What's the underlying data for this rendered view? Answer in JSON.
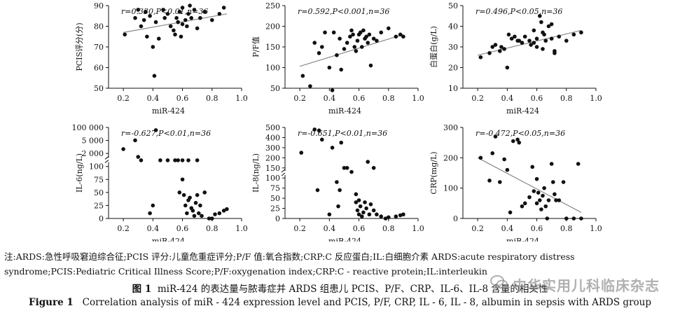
{
  "chart_data": [
    {
      "type": "scatter",
      "id": "pcis",
      "annotation": "r=0.330,P<0.01,n=36",
      "ylabel": "PCIS评分(分)",
      "xlabel": "miR-424",
      "xticks": [
        "0.2",
        "0.4",
        "0.6",
        "0.8",
        "1.0"
      ],
      "xtick_values": [
        0.2,
        0.4,
        0.6,
        0.8,
        1.0
      ],
      "xlim": [
        0.1,
        1.0
      ],
      "yticks": [
        "50",
        "60",
        "70",
        "80",
        "90"
      ],
      "ytick_values": [
        50,
        60,
        70,
        80,
        90
      ],
      "ylim": [
        50,
        90
      ],
      "trend": [
        [
          0.2,
          77
        ],
        [
          0.9,
          86
        ]
      ],
      "points": [
        [
          0.21,
          76
        ],
        [
          0.28,
          84
        ],
        [
          0.3,
          88
        ],
        [
          0.32,
          80
        ],
        [
          0.34,
          83
        ],
        [
          0.35,
          87
        ],
        [
          0.36,
          75
        ],
        [
          0.38,
          85
        ],
        [
          0.4,
          70
        ],
        [
          0.41,
          56
        ],
        [
          0.42,
          82
        ],
        [
          0.44,
          74
        ],
        [
          0.47,
          88
        ],
        [
          0.48,
          84
        ],
        [
          0.5,
          86
        ],
        [
          0.52,
          80
        ],
        [
          0.54,
          78
        ],
        [
          0.55,
          76
        ],
        [
          0.56,
          84
        ],
        [
          0.57,
          82
        ],
        [
          0.58,
          87
        ],
        [
          0.59,
          75
        ],
        [
          0.6,
          89
        ],
        [
          0.6,
          81
        ],
        [
          0.62,
          83
        ],
        [
          0.63,
          80
        ],
        [
          0.64,
          86
        ],
        [
          0.65,
          90
        ],
        [
          0.66,
          84
        ],
        [
          0.68,
          88
        ],
        [
          0.7,
          79
        ],
        [
          0.72,
          84
        ],
        [
          0.75,
          87
        ],
        [
          0.8,
          83
        ],
        [
          0.85,
          86
        ],
        [
          0.88,
          89
        ]
      ]
    },
    {
      "type": "scatter",
      "id": "pf",
      "annotation": "r=0.592,P<0.001,n=36",
      "ylabel": "P/F值",
      "xlabel": "miR-424",
      "xticks": [
        "0.2",
        "0.4",
        "0.6",
        "0.8",
        "1.0"
      ],
      "xtick_values": [
        0.2,
        0.4,
        0.6,
        0.8,
        1.0
      ],
      "xlim": [
        0.1,
        1.0
      ],
      "yticks": [
        "50",
        "100",
        "150",
        "200",
        "250"
      ],
      "ytick_values": [
        50,
        100,
        150,
        200,
        250
      ],
      "ylim": [
        50,
        250
      ],
      "trend": [
        [
          0.2,
          103
        ],
        [
          0.9,
          180
        ]
      ],
      "points": [
        [
          0.22,
          80
        ],
        [
          0.27,
          55
        ],
        [
          0.3,
          160
        ],
        [
          0.33,
          135
        ],
        [
          0.35,
          150
        ],
        [
          0.37,
          185
        ],
        [
          0.4,
          100
        ],
        [
          0.42,
          45
        ],
        [
          0.43,
          185
        ],
        [
          0.45,
          130
        ],
        [
          0.47,
          170
        ],
        [
          0.48,
          95
        ],
        [
          0.5,
          145
        ],
        [
          0.52,
          160
        ],
        [
          0.54,
          175
        ],
        [
          0.55,
          190
        ],
        [
          0.56,
          180
        ],
        [
          0.57,
          150
        ],
        [
          0.58,
          140
        ],
        [
          0.59,
          165
        ],
        [
          0.6,
          180
        ],
        [
          0.61,
          185
        ],
        [
          0.62,
          150
        ],
        [
          0.63,
          190
        ],
        [
          0.64,
          170
        ],
        [
          0.65,
          175
        ],
        [
          0.66,
          160
        ],
        [
          0.67,
          180
        ],
        [
          0.68,
          105
        ],
        [
          0.7,
          170
        ],
        [
          0.72,
          165
        ],
        [
          0.75,
          185
        ],
        [
          0.8,
          195
        ],
        [
          0.85,
          175
        ],
        [
          0.88,
          180
        ],
        [
          0.9,
          175
        ]
      ]
    },
    {
      "type": "scatter",
      "id": "albumin",
      "annotation": "r=0.496,P<0.05,n=36",
      "ylabel": "白蛋白(g/L)",
      "xlabel": "miR-424",
      "xticks": [
        "0.2",
        "0.4",
        "0.6",
        "0.8",
        "1.0"
      ],
      "xtick_values": [
        0.2,
        0.4,
        0.6,
        0.8,
        1.0
      ],
      "xlim": [
        0.1,
        1.0
      ],
      "yticks": [
        "10",
        "20",
        "30",
        "40",
        "50"
      ],
      "ytick_values": [
        10,
        20,
        30,
        40,
        50
      ],
      "ylim": [
        10,
        50
      ],
      "trend": [
        [
          0.2,
          26
        ],
        [
          0.9,
          38
        ]
      ],
      "points": [
        [
          0.22,
          25
        ],
        [
          0.28,
          27
        ],
        [
          0.3,
          30
        ],
        [
          0.32,
          31
        ],
        [
          0.35,
          28
        ],
        [
          0.38,
          29
        ],
        [
          0.4,
          20
        ],
        [
          0.41,
          36
        ],
        [
          0.43,
          34
        ],
        [
          0.45,
          35
        ],
        [
          0.47,
          33
        ],
        [
          0.5,
          32
        ],
        [
          0.52,
          35
        ],
        [
          0.55,
          33
        ],
        [
          0.56,
          31
        ],
        [
          0.58,
          38
        ],
        [
          0.6,
          34
        ],
        [
          0.62,
          45
        ],
        [
          0.63,
          42
        ],
        [
          0.64,
          37
        ],
        [
          0.65,
          36
        ],
        [
          0.66,
          33
        ],
        [
          0.68,
          40
        ],
        [
          0.7,
          34
        ],
        [
          0.72,
          28
        ],
        [
          0.72,
          27
        ],
        [
          0.75,
          35
        ],
        [
          0.8,
          33
        ],
        [
          0.85,
          36
        ],
        [
          0.9,
          37
        ],
        [
          0.6,
          30
        ],
        [
          0.64,
          29
        ],
        [
          0.48,
          33
        ],
        [
          0.36,
          30
        ],
        [
          0.7,
          41
        ],
        [
          0.58,
          32
        ]
      ]
    },
    {
      "type": "scatter",
      "id": "il6",
      "annotation": "r=-0.627,P<0.01,n=36",
      "ylabel": "IL-6(ng/L)",
      "xlabel": "miR-424",
      "xticks": [
        "0.2",
        "0.4",
        "0.6",
        "0.8",
        "1.0"
      ],
      "xtick_values": [
        0.2,
        0.4,
        0.6,
        0.8,
        1.0
      ],
      "xlim": [
        0.1,
        1.0
      ],
      "yticks": [
        "0",
        "25",
        "50",
        "75",
        "100",
        "2 000",
        "5 000",
        "100 000"
      ],
      "ytick_values": [
        0,
        25,
        50,
        75,
        100,
        2000,
        5000,
        100000
      ],
      "ylim": [
        0,
        100000
      ],
      "axis_break": true,
      "points": [
        [
          0.2,
          3000
        ],
        [
          0.28,
          6000
        ],
        [
          0.3,
          1500
        ],
        [
          0.32,
          1000
        ],
        [
          0.38,
          10
        ],
        [
          0.4,
          25
        ],
        [
          0.42,
          80000
        ],
        [
          0.45,
          1000
        ],
        [
          0.5,
          1000
        ],
        [
          0.55,
          1000
        ],
        [
          0.57,
          1000
        ],
        [
          0.6,
          1000
        ],
        [
          0.6,
          75
        ],
        [
          0.61,
          45
        ],
        [
          0.62,
          25
        ],
        [
          0.63,
          10
        ],
        [
          0.64,
          35
        ],
        [
          0.65,
          40
        ],
        [
          0.66,
          20
        ],
        [
          0.67,
          15
        ],
        [
          0.68,
          5
        ],
        [
          0.69,
          30
        ],
        [
          0.7,
          1000
        ],
        [
          0.7,
          45
        ],
        [
          0.71,
          10
        ],
        [
          0.72,
          25
        ],
        [
          0.73,
          5
        ],
        [
          0.75,
          50
        ],
        [
          0.78,
          0
        ],
        [
          0.8,
          0
        ],
        [
          0.82,
          8
        ],
        [
          0.85,
          10
        ],
        [
          0.88,
          15
        ],
        [
          0.9,
          18
        ],
        [
          0.58,
          50
        ],
        [
          0.64,
          1000
        ]
      ]
    },
    {
      "type": "scatter",
      "id": "il8",
      "annotation": "r=-0.651,P<0.01,n=36",
      "ylabel": "IL-8(ng/L)",
      "xlabel": "miR-424",
      "xticks": [
        "0.2",
        "0.4",
        "0.6",
        "0.8",
        "1.0"
      ],
      "xtick_values": [
        0.2,
        0.4,
        0.6,
        0.8,
        1.0
      ],
      "xlim": [
        0.1,
        1.0
      ],
      "yticks": [
        "0",
        "25",
        "50",
        "75",
        "100",
        "150",
        "200",
        "300",
        "400",
        "500"
      ],
      "ytick_values": [
        0,
        25,
        50,
        75,
        100,
        150,
        200,
        300,
        400,
        500
      ],
      "ylim": [
        0,
        500
      ],
      "axis_break": true,
      "points": [
        [
          0.21,
          250
        ],
        [
          0.3,
          480
        ],
        [
          0.32,
          70
        ],
        [
          0.33,
          470
        ],
        [
          0.35,
          380
        ],
        [
          0.4,
          10
        ],
        [
          0.42,
          300
        ],
        [
          0.45,
          90
        ],
        [
          0.46,
          30
        ],
        [
          0.47,
          70
        ],
        [
          0.48,
          350
        ],
        [
          0.5,
          150
        ],
        [
          0.52,
          150
        ],
        [
          0.55,
          130
        ],
        [
          0.58,
          60
        ],
        [
          0.59,
          20
        ],
        [
          0.6,
          45
        ],
        [
          0.6,
          10
        ],
        [
          0.61,
          30
        ],
        [
          0.62,
          5
        ],
        [
          0.63,
          15
        ],
        [
          0.64,
          40
        ],
        [
          0.65,
          25
        ],
        [
          0.66,
          180
        ],
        [
          0.67,
          10
        ],
        [
          0.68,
          35
        ],
        [
          0.7,
          20
        ],
        [
          0.72,
          10
        ],
        [
          0.75,
          5
        ],
        [
          0.78,
          0
        ],
        [
          0.8,
          3
        ],
        [
          0.85,
          5
        ],
        [
          0.88,
          8
        ],
        [
          0.9,
          10
        ],
        [
          0.58,
          40
        ],
        [
          0.7,
          150
        ]
      ]
    },
    {
      "type": "scatter",
      "id": "crp",
      "annotation": "r=-0.472,P<0.05,n=36",
      "ylabel": "CRP(mg/L)",
      "xlabel": "miR-424",
      "xticks": [
        "0.2",
        "0.4",
        "0.6",
        "0.8",
        "1.0"
      ],
      "xtick_values": [
        0.2,
        0.4,
        0.6,
        0.8,
        1.0
      ],
      "xlim": [
        0.1,
        1.0
      ],
      "yticks": [
        "0",
        "100",
        "200",
        "300"
      ],
      "ytick_values": [
        0,
        100,
        200,
        300
      ],
      "ylim": [
        0,
        300
      ],
      "trend": [
        [
          0.2,
          200
        ],
        [
          0.9,
          20
        ]
      ],
      "points": [
        [
          0.22,
          200
        ],
        [
          0.28,
          125
        ],
        [
          0.3,
          215
        ],
        [
          0.32,
          270
        ],
        [
          0.35,
          120
        ],
        [
          0.38,
          195
        ],
        [
          0.4,
          160
        ],
        [
          0.42,
          20
        ],
        [
          0.44,
          255
        ],
        [
          0.47,
          260
        ],
        [
          0.48,
          250
        ],
        [
          0.5,
          40
        ],
        [
          0.52,
          50
        ],
        [
          0.55,
          70
        ],
        [
          0.57,
          170
        ],
        [
          0.58,
          90
        ],
        [
          0.6,
          50
        ],
        [
          0.61,
          85
        ],
        [
          0.62,
          60
        ],
        [
          0.63,
          30
        ],
        [
          0.64,
          75
        ],
        [
          0.65,
          100
        ],
        [
          0.66,
          40
        ],
        [
          0.67,
          0
        ],
        [
          0.68,
          60
        ],
        [
          0.7,
          180
        ],
        [
          0.71,
          120
        ],
        [
          0.72,
          80
        ],
        [
          0.73,
          60
        ],
        [
          0.75,
          60
        ],
        [
          0.78,
          120
        ],
        [
          0.8,
          0
        ],
        [
          0.85,
          0
        ],
        [
          0.88,
          180
        ],
        [
          0.9,
          0
        ],
        [
          0.6,
          130
        ]
      ]
    }
  ],
  "notes": {
    "line1": "注:ARDS:急性呼吸窘迫综合征;PCIS 评分:儿童危重症评分;P/F 值:氧合指数;CRP:C 反应蛋白;IL:白细胞介素   ARDS:acute respiratory distress",
    "line2": "syndrome;PCIS:Pediatric Critical Illness Score;P/F:oxygenation index;CRP:C - reactive protein;IL:interleukin"
  },
  "caption": {
    "cn_label": "图 1",
    "cn_text": "miR-424 的表达量与脓毒症并 ARDS 组患儿 PCIS、P/F、CRP、IL-6、IL-8 含量的相关性",
    "en_label": "Figure 1",
    "en_text": "Correlation analysis of miR - 424 expression level and PCIS, P/F, CRP, IL - 6, IL - 8, albumin in sepsis with ARDS group"
  },
  "watermark": "中华实用儿科临床杂志"
}
